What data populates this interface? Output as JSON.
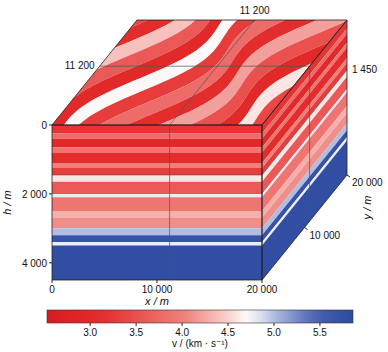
{
  "chart_data": {
    "type": "volume",
    "x_label": "x / m",
    "y_label": "y / m",
    "h_label": "h / m",
    "xlim": [
      0,
      20000
    ],
    "ylim": [
      0,
      20000
    ],
    "hlim": [
      0,
      4500
    ],
    "xticks": [
      0,
      {
        "value": 10000,
        "label": "10 000"
      },
      {
        "value": 20000,
        "label": "20 000"
      }
    ],
    "yticks": [
      {
        "value": 10000,
        "label": "10 000"
      },
      {
        "value": 20000,
        "label": "20 000"
      }
    ],
    "hticks": [
      0,
      {
        "value": 2000,
        "label": "2 000"
      },
      {
        "value": 4000,
        "label": "4 000"
      }
    ],
    "slices": [
      {
        "axis": "x",
        "value": 11200,
        "label": "11 200"
      },
      {
        "axis": "y",
        "value": 11200,
        "label": "11 200"
      },
      {
        "axis": "h",
        "value": 1450,
        "label": "1 450"
      }
    ],
    "layers": [
      {
        "top": 0,
        "bottom": 250,
        "v": 3.2
      },
      {
        "top": 250,
        "bottom": 400,
        "v": 3.8
      },
      {
        "top": 400,
        "bottom": 650,
        "v": 3.0
      },
      {
        "top": 650,
        "bottom": 800,
        "v": 3.9
      },
      {
        "top": 800,
        "bottom": 1100,
        "v": 3.1
      },
      {
        "top": 1100,
        "bottom": 1250,
        "v": 4.0
      },
      {
        "top": 1250,
        "bottom": 1450,
        "v": 3.3
      },
      {
        "top": 1450,
        "bottom": 1650,
        "v": 4.6
      },
      {
        "top": 1650,
        "bottom": 2000,
        "v": 3.6
      },
      {
        "top": 2000,
        "bottom": 2100,
        "v": 4.8
      },
      {
        "top": 2100,
        "bottom": 2500,
        "v": 3.9
      },
      {
        "top": 2500,
        "bottom": 2700,
        "v": 4.3
      },
      {
        "top": 2700,
        "bottom": 3000,
        "v": 4.1
      },
      {
        "top": 3000,
        "bottom": 3200,
        "v": 5.0
      },
      {
        "top": 3200,
        "bottom": 3400,
        "v": 5.7
      },
      {
        "top": 3400,
        "bottom": 3500,
        "v": 4.8
      },
      {
        "top": 3500,
        "bottom": 4500,
        "v": 5.8
      }
    ],
    "top_face": [
      3.4,
      3.1,
      4.4,
      3.6,
      3.0,
      4.7,
      3.3,
      3.8,
      3.1,
      4.2,
      3.5,
      3.0,
      4.6,
      3.4,
      3.2,
      3.7
    ],
    "colorbar": {
      "label": "v / (km · s⁻¹)",
      "range": [
        2.53,
        5.86
      ],
      "ticks": [
        {
          "value": 3.0,
          "label": "3.0"
        },
        {
          "value": 3.5,
          "label": "3.5"
        },
        {
          "value": 4.0,
          "label": "4.0"
        },
        {
          "value": 4.5,
          "label": "4.5"
        },
        {
          "value": 5.0,
          "label": "5.0"
        },
        {
          "value": 5.5,
          "label": "5.5"
        }
      ]
    }
  }
}
